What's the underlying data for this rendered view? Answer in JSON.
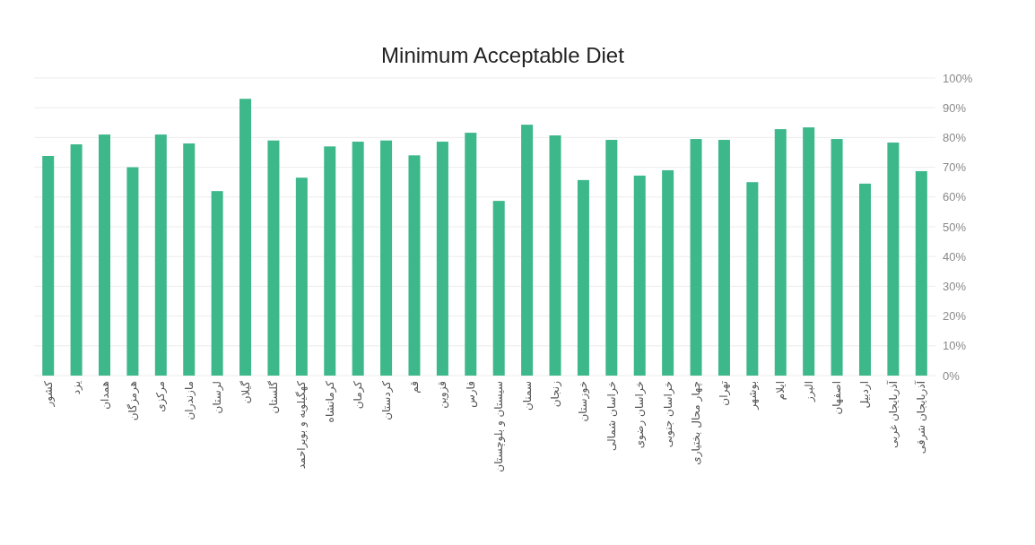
{
  "chart_data": {
    "type": "bar",
    "title": "Minimum Acceptable Diet",
    "categories": [
      "کشور",
      "یزد",
      "همدان",
      "هرمزگان",
      "مرکزی",
      "مازندران",
      "لرستان",
      "گیلان",
      "گلستان",
      "کهگیلویه و بویراحمد",
      "کرمانشاه",
      "کرمان",
      "کردستان",
      "قم",
      "قزوین",
      "فارس",
      "سیستان و بلوچستان",
      "سمنان",
      "زنجان",
      "خوزستان",
      "خراسان شمالی",
      "خراسان رضوی",
      "خراسان جنوبی",
      "چهار محال بختیاری",
      "تهران",
      "بوشهر",
      "ایلام",
      "البرز",
      "اصفهان",
      "اردبیل",
      "آذربایجان غربی",
      "آذربایجان شرقی"
    ],
    "values": [
      73.8,
      77.7,
      81,
      70,
      81,
      78,
      62,
      93,
      79,
      66.5,
      77,
      78.6,
      79,
      74,
      78.6,
      81.6,
      58.7,
      84.3,
      80.7,
      65.7,
      79.2,
      67.2,
      69,
      79.5,
      79.2,
      65,
      82.8,
      83.4,
      79.5,
      64.5,
      78.3,
      68.7
    ],
    "color": "#3cb88a",
    "ylim": [
      0,
      100
    ],
    "yticks": [
      {
        "value": 0,
        "label": "0%"
      },
      {
        "value": 10,
        "label": "10%"
      },
      {
        "value": 20,
        "label": "20%"
      },
      {
        "value": 30,
        "label": "30%"
      },
      {
        "value": 40,
        "label": "40%"
      },
      {
        "value": 50,
        "label": "50%"
      },
      {
        "value": 60,
        "label": "60%"
      },
      {
        "value": 70,
        "label": "70%"
      },
      {
        "value": 80,
        "label": "80%"
      },
      {
        "value": 90,
        "label": "90%"
      },
      {
        "value": 100,
        "label": "100%"
      }
    ],
    "grid": "y"
  }
}
